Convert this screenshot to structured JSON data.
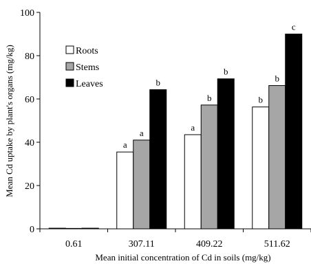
{
  "chart_data": {
    "type": "bar",
    "xlabel": "Mean initial  concentration  of Cd in soils  (mg/kg)",
    "ylabel": "Mean Cd uptake by plant's organs  (mg/kg)",
    "categories": [
      "0.61",
      "307.11",
      "409.22",
      "511.62"
    ],
    "ylim": [
      0,
      100
    ],
    "yticks": [
      "0",
      "20",
      "40",
      "60",
      "80",
      "100"
    ],
    "grid": false,
    "legend_position": "upper-left",
    "series": [
      {
        "name": "Roots",
        "color": "#ffffff",
        "values": [
          0.3,
          35.5,
          43.5,
          56.3
        ],
        "labels": [
          "",
          "a",
          "a",
          "b"
        ]
      },
      {
        "name": "Stems",
        "color": "#a6a6a6",
        "values": [
          0.2,
          41.0,
          57.2,
          66.2
        ],
        "labels": [
          "",
          "a",
          "b",
          "b"
        ]
      },
      {
        "name": "Leaves",
        "color": "#000000",
        "values": [
          0.3,
          64.3,
          69.3,
          90.0
        ],
        "labels": [
          "",
          "b",
          "b",
          "c"
        ]
      }
    ]
  }
}
